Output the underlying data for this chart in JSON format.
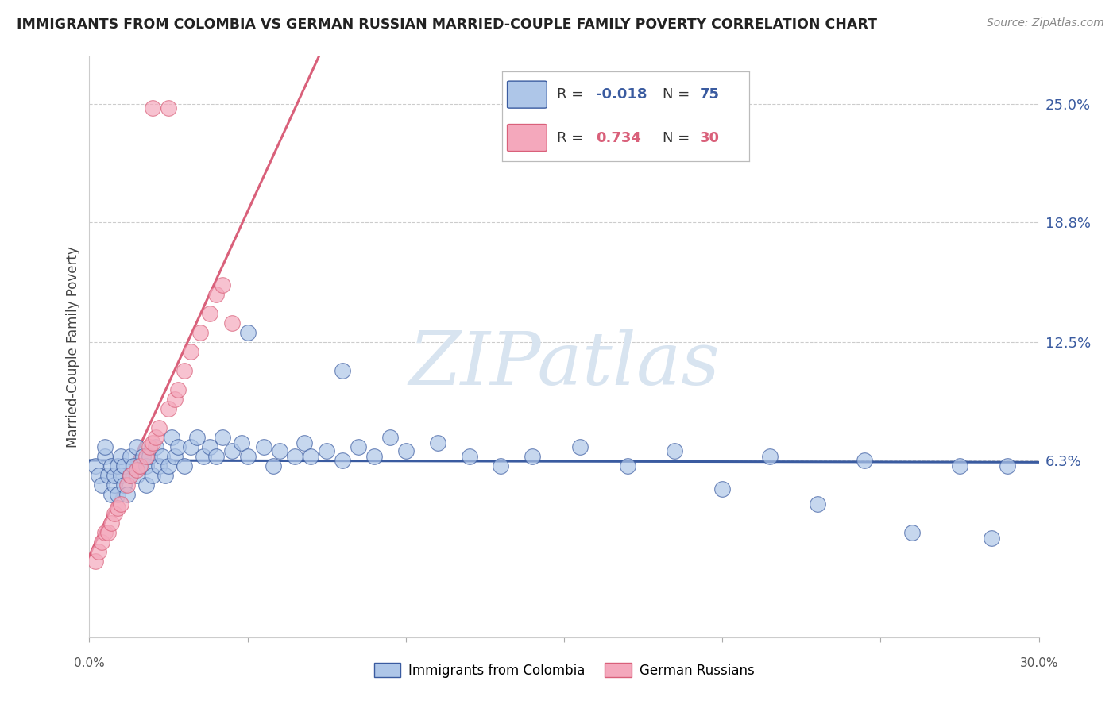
{
  "title": "IMMIGRANTS FROM COLOMBIA VS GERMAN RUSSIAN MARRIED-COUPLE FAMILY POVERTY CORRELATION CHART",
  "source": "Source: ZipAtlas.com",
  "ylabel": "Married-Couple Family Poverty",
  "ytick_labels": [
    "25.0%",
    "18.8%",
    "12.5%",
    "6.3%"
  ],
  "ytick_values": [
    0.25,
    0.188,
    0.125,
    0.063
  ],
  "xlim": [
    0.0,
    0.3
  ],
  "ylim": [
    -0.03,
    0.275
  ],
  "r_colombia": -0.018,
  "n_colombia": 75,
  "r_german": 0.734,
  "n_german": 30,
  "colombia_color": "#aec6e8",
  "german_color": "#f4a8bc",
  "trendline_colombia_color": "#3a5ba0",
  "trendline_german_color": "#d9607a",
  "watermark_color": "#d8e4f0",
  "legend_box_color": "#cccccc",
  "colombia_label": "Immigrants from Colombia",
  "german_label": "German Russians",
  "colombia_scatter_x": [
    0.002,
    0.003,
    0.004,
    0.005,
    0.005,
    0.006,
    0.007,
    0.007,
    0.008,
    0.008,
    0.009,
    0.009,
    0.01,
    0.01,
    0.011,
    0.011,
    0.012,
    0.013,
    0.013,
    0.014,
    0.015,
    0.015,
    0.016,
    0.017,
    0.018,
    0.018,
    0.019,
    0.02,
    0.021,
    0.022,
    0.023,
    0.024,
    0.025,
    0.026,
    0.027,
    0.028,
    0.03,
    0.032,
    0.034,
    0.036,
    0.038,
    0.04,
    0.042,
    0.045,
    0.048,
    0.05,
    0.055,
    0.058,
    0.06,
    0.065,
    0.068,
    0.07,
    0.075,
    0.08,
    0.085,
    0.09,
    0.095,
    0.1,
    0.11,
    0.12,
    0.13,
    0.14,
    0.155,
    0.17,
    0.185,
    0.2,
    0.215,
    0.23,
    0.245,
    0.26,
    0.275,
    0.285,
    0.29,
    0.05,
    0.08
  ],
  "colombia_scatter_y": [
    0.06,
    0.055,
    0.05,
    0.065,
    0.07,
    0.055,
    0.045,
    0.06,
    0.05,
    0.055,
    0.045,
    0.06,
    0.055,
    0.065,
    0.05,
    0.06,
    0.045,
    0.055,
    0.065,
    0.06,
    0.055,
    0.07,
    0.06,
    0.065,
    0.05,
    0.06,
    0.065,
    0.055,
    0.07,
    0.06,
    0.065,
    0.055,
    0.06,
    0.075,
    0.065,
    0.07,
    0.06,
    0.07,
    0.075,
    0.065,
    0.07,
    0.065,
    0.075,
    0.068,
    0.072,
    0.065,
    0.07,
    0.06,
    0.068,
    0.065,
    0.072,
    0.065,
    0.068,
    0.063,
    0.07,
    0.065,
    0.075,
    0.068,
    0.072,
    0.065,
    0.06,
    0.065,
    0.07,
    0.06,
    0.068,
    0.048,
    0.065,
    0.04,
    0.063,
    0.025,
    0.06,
    0.022,
    0.06,
    0.13,
    0.11
  ],
  "german_scatter_x": [
    0.002,
    0.003,
    0.004,
    0.005,
    0.006,
    0.007,
    0.008,
    0.009,
    0.01,
    0.012,
    0.013,
    0.015,
    0.016,
    0.018,
    0.019,
    0.02,
    0.021,
    0.022,
    0.025,
    0.027,
    0.028,
    0.03,
    0.032,
    0.035,
    0.038,
    0.04,
    0.042,
    0.045,
    0.02,
    0.025
  ],
  "german_scatter_y": [
    0.01,
    0.015,
    0.02,
    0.025,
    0.025,
    0.03,
    0.035,
    0.038,
    0.04,
    0.05,
    0.055,
    0.058,
    0.06,
    0.065,
    0.07,
    0.072,
    0.075,
    0.08,
    0.09,
    0.095,
    0.1,
    0.11,
    0.12,
    0.13,
    0.14,
    0.15,
    0.155,
    0.135,
    0.248,
    0.248
  ]
}
